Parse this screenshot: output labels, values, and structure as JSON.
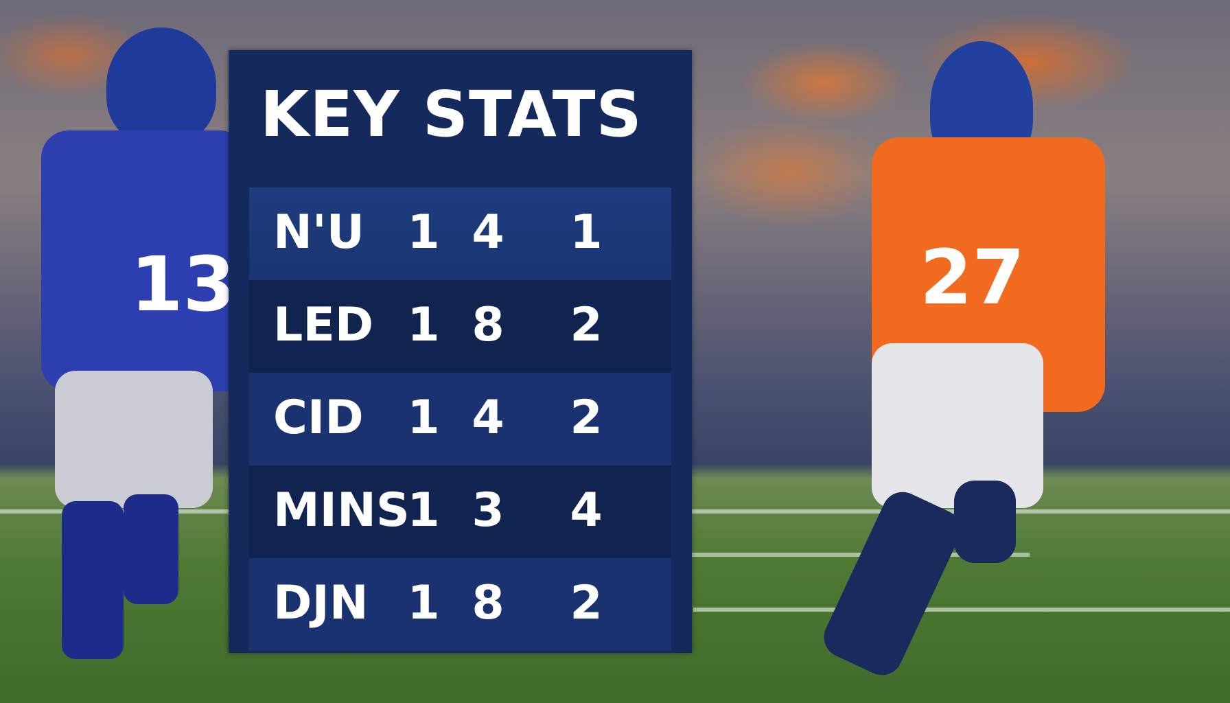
{
  "graphic": {
    "title": "KEY STATS",
    "rows": [
      {
        "label": "N'U",
        "values": [
          "1",
          "4",
          "1"
        ]
      },
      {
        "label": "LED",
        "values": [
          "1",
          "8",
          "2"
        ]
      },
      {
        "label": "CID",
        "values": [
          "1",
          "4",
          "2"
        ]
      },
      {
        "label": "MINS",
        "values": [
          "1",
          "3",
          "4"
        ]
      },
      {
        "label": "DJN",
        "values": [
          "1",
          "8",
          "2"
        ]
      }
    ]
  },
  "players": {
    "left_jersey": "13",
    "right_jersey": "27"
  },
  "colors": {
    "panel": "#142a5c",
    "row_light": "#1c3878",
    "row_dark": "#11244f",
    "giants_blue": "#2a3aa0",
    "broncos_orange": "#f26a1f"
  }
}
